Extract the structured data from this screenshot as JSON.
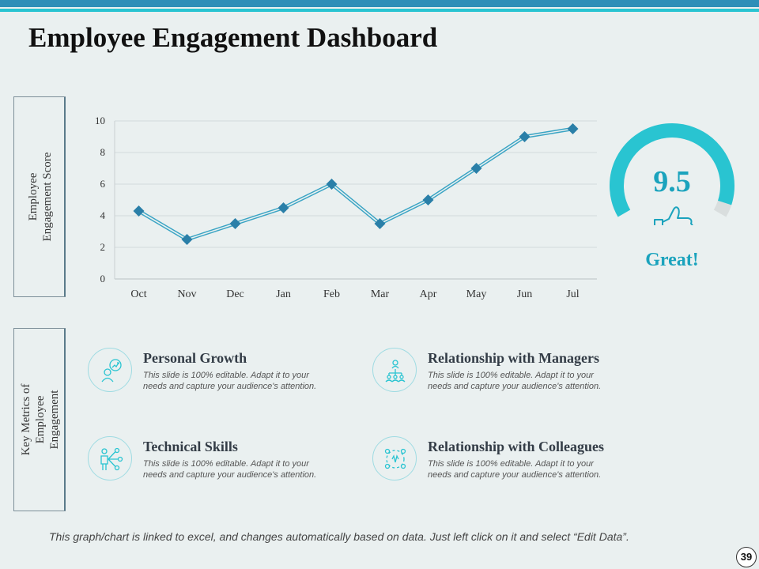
{
  "title": "Employee Engagement Dashboard",
  "score_panel_label": [
    "Employee",
    "Engagement Score"
  ],
  "metrics_panel_label": [
    "Key Metrics of",
    "Employee",
    "Engagement"
  ],
  "chart_data": {
    "type": "line",
    "categories": [
      "Oct",
      "Nov",
      "Dec",
      "Jan",
      "Feb",
      "Mar",
      "Apr",
      "May",
      "Jun",
      "Jul"
    ],
    "values": [
      4.3,
      2.5,
      3.5,
      4.5,
      6,
      3.5,
      5,
      7,
      9,
      9.5
    ],
    "ylim": [
      0,
      10
    ],
    "yticks": [
      "0",
      "2",
      "4",
      "6",
      "8",
      "10"
    ],
    "grid": true,
    "title": "",
    "xlabel": "",
    "ylabel": "Employee Engagement Score"
  },
  "gauge": {
    "value": "9.5",
    "fraction": 0.95,
    "label": "Great!"
  },
  "metrics": [
    {
      "title": "Personal Growth",
      "desc": "This slide is 100% editable. Adapt it to your needs and capture your audience's attention.",
      "icon": "personal-growth-icon"
    },
    {
      "title": "Relationship with Managers",
      "desc": "This slide is 100% editable. Adapt it to your needs and capture your audience's attention.",
      "icon": "managers-icon"
    },
    {
      "title": "Technical Skills",
      "desc": "This slide is 100% editable. Adapt it to your needs and capture your audience's attention.",
      "icon": "technical-skills-icon"
    },
    {
      "title": "Relationship with Colleagues",
      "desc": "This slide is 100% editable. Adapt it to your needs and capture your audience's attention.",
      "icon": "colleagues-icon"
    }
  ],
  "footer": "This graph/chart is linked to excel, and changes automatically based on data. Just left click on it and select “Edit Data”.",
  "page_number": "39",
  "colors": {
    "accent": "#29c4d1",
    "line": "#3aa4c4",
    "marker": "#2a7fa8",
    "text": "#333c46"
  }
}
